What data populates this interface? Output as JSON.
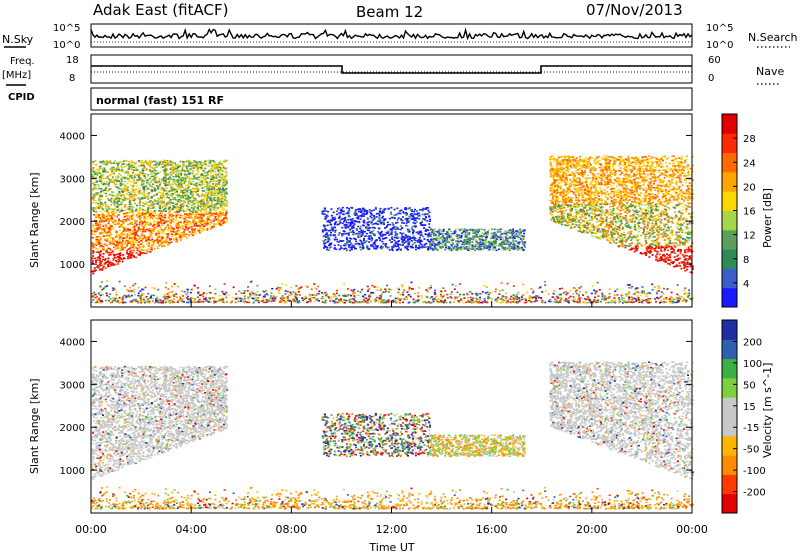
{
  "header": {
    "title": "Adak East (fitACF)",
    "beam": "Beam 12",
    "date": "07/Nov/2013"
  },
  "side_labels": {
    "nsky": "N.Sky",
    "nsearch": "N.Search",
    "freq": "Freq.",
    "freq_unit": "[MHz]",
    "nave": "Nave",
    "cpid": "CPID"
  },
  "top_axes": {
    "nsky_ticks": [
      "10^5",
      "10^0"
    ],
    "nsearch_ticks": [
      "10^5",
      "10^0"
    ],
    "freq_ticks": [
      "18",
      "8"
    ],
    "nave_ticks": [
      "60",
      "0"
    ]
  },
  "cpid_text": "normal (fast) 151 RF",
  "colors": {
    "power": [
      "#1a1aff",
      "#3a5fc8",
      "#2e8b57",
      "#5aa05a",
      "#a6d64a",
      "#ffd700",
      "#ffa500",
      "#ff6a00",
      "#ff2a00",
      "#e00000"
    ],
    "velocity": [
      "#e00000",
      "#ff3a00",
      "#ff8c00",
      "#ffb400",
      "#c8c8c8",
      "#c8c8c8",
      "#7fd040",
      "#3cb043",
      "#2e5fb0",
      "#1e2ea0"
    ]
  },
  "chart_data": [
    {
      "type": "heatmap",
      "name": "power",
      "ylabel": "Slant Range [km]",
      "ylim": [
        0,
        4500
      ],
      "y_ticks": [
        "1000",
        "2000",
        "3000",
        "4000"
      ],
      "colorbar_label": "Power [dB]",
      "colorbar_ticks": [
        "4",
        "8",
        "12",
        "16",
        "20",
        "24",
        "28"
      ],
      "regions": [
        {
          "t0": 0.0,
          "t1": 5.5,
          "r0": 700,
          "r1": 3500,
          "level": "mixed-high"
        },
        {
          "t0": 9.2,
          "t1": 13.5,
          "r0": 1300,
          "r1": 2300,
          "level": "low"
        },
        {
          "t0": 13.5,
          "t1": 17.3,
          "r0": 1300,
          "r1": 1800,
          "level": "low"
        },
        {
          "t0": 18.3,
          "t1": 24.0,
          "r0": 700,
          "r1": 3500,
          "level": "mixed-high"
        }
      ]
    },
    {
      "type": "heatmap",
      "name": "velocity",
      "ylabel": "Slant Range [km]",
      "ylim": [
        0,
        4500
      ],
      "y_ticks": [
        "1000",
        "2000",
        "3000",
        "4000"
      ],
      "colorbar_label": "Velocity [m s^-1]",
      "colorbar_ticks": [
        "-200",
        "-100",
        "-50",
        "-15",
        "15",
        "50",
        "100",
        "200"
      ],
      "x_ticks": [
        "00:00",
        "04:00",
        "08:00",
        "12:00",
        "16:00",
        "20:00",
        "00:00"
      ],
      "xlabel": "Time UT"
    }
  ]
}
